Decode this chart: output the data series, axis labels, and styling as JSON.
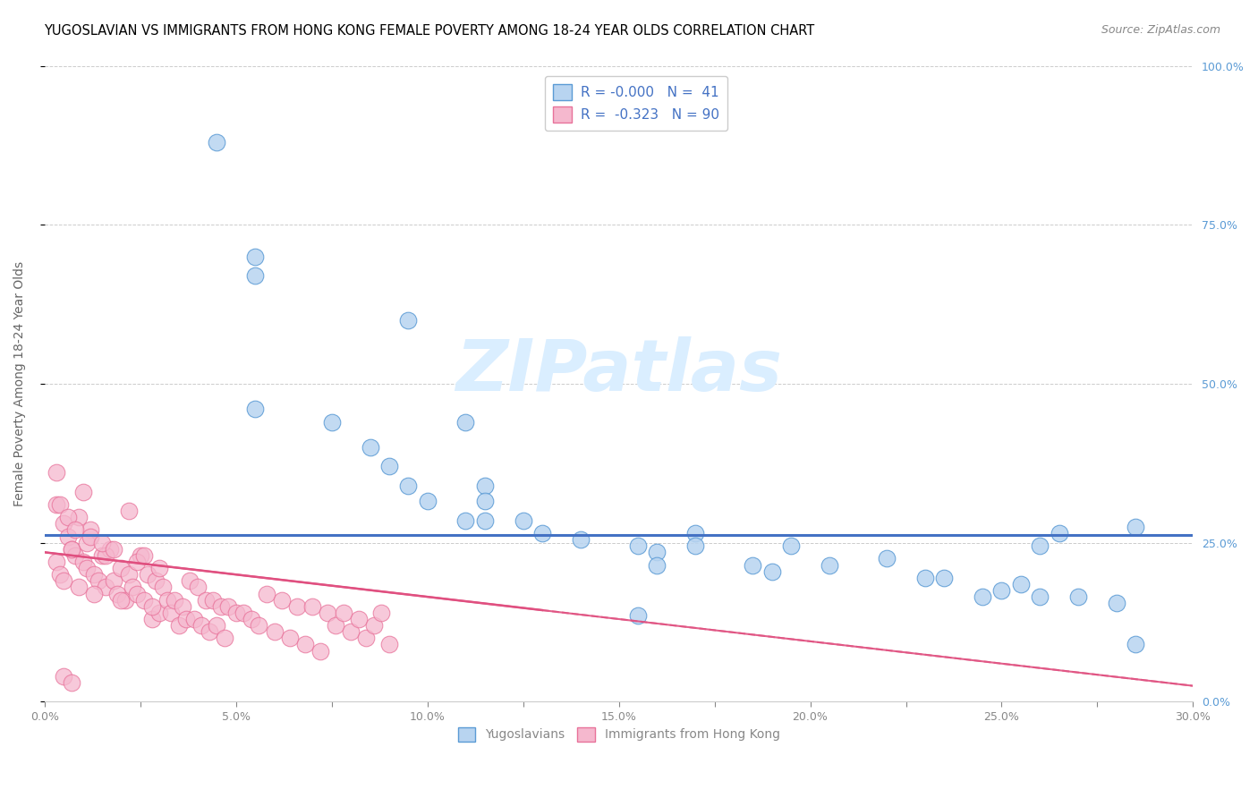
{
  "title": "YUGOSLAVIAN VS IMMIGRANTS FROM HONG KONG FEMALE POVERTY AMONG 18-24 YEAR OLDS CORRELATION CHART",
  "source": "Source: ZipAtlas.com",
  "ylabel": "Female Poverty Among 18-24 Year Olds",
  "xlim": [
    0.0,
    0.3
  ],
  "ylim": [
    0.0,
    1.0
  ],
  "xtick_labels": [
    "0.0%",
    "",
    "5.0%",
    "",
    "10.0%",
    "",
    "15.0%",
    "",
    "20.0%",
    "",
    "25.0%",
    "",
    "30.0%"
  ],
  "xtick_vals": [
    0.0,
    0.025,
    0.05,
    0.075,
    0.1,
    0.125,
    0.15,
    0.175,
    0.2,
    0.225,
    0.25,
    0.275,
    0.3
  ],
  "ytick_vals": [
    0.0,
    0.25,
    0.5,
    0.75,
    1.0
  ],
  "ytick_labels_right": [
    "0.0%",
    "25.0%",
    "50.0%",
    "75.0%",
    "100.0%"
  ],
  "blue_color": "#b8d4f0",
  "pink_color": "#f5b8ce",
  "blue_edge_color": "#5b9bd5",
  "pink_edge_color": "#e8729a",
  "blue_line_color": "#4472c4",
  "pink_line_color": "#e05080",
  "watermark_color": "#daeeff",
  "blue_hline_y": 0.262,
  "pink_trend_x0": 0.0,
  "pink_trend_y0": 0.235,
  "pink_trend_x1": 0.3,
  "pink_trend_y1": 0.025,
  "blue_scatter_x": [
    0.045,
    0.055,
    0.055,
    0.095,
    0.055,
    0.075,
    0.11,
    0.085,
    0.09,
    0.095,
    0.1,
    0.11,
    0.115,
    0.115,
    0.115,
    0.125,
    0.13,
    0.14,
    0.155,
    0.16,
    0.16,
    0.17,
    0.17,
    0.185,
    0.19,
    0.195,
    0.205,
    0.22,
    0.23,
    0.235,
    0.245,
    0.25,
    0.255,
    0.26,
    0.265,
    0.26,
    0.155,
    0.27,
    0.28,
    0.285,
    0.285
  ],
  "blue_scatter_y": [
    0.88,
    0.7,
    0.67,
    0.6,
    0.46,
    0.44,
    0.44,
    0.4,
    0.37,
    0.34,
    0.315,
    0.285,
    0.34,
    0.315,
    0.285,
    0.285,
    0.265,
    0.255,
    0.245,
    0.235,
    0.215,
    0.265,
    0.245,
    0.215,
    0.205,
    0.245,
    0.215,
    0.225,
    0.195,
    0.195,
    0.165,
    0.175,
    0.185,
    0.165,
    0.265,
    0.245,
    0.135,
    0.165,
    0.155,
    0.275,
    0.09
  ],
  "pink_scatter_x": [
    0.003,
    0.005,
    0.006,
    0.007,
    0.008,
    0.009,
    0.01,
    0.011,
    0.012,
    0.013,
    0.014,
    0.015,
    0.016,
    0.017,
    0.018,
    0.019,
    0.02,
    0.021,
    0.022,
    0.023,
    0.024,
    0.025,
    0.026,
    0.027,
    0.028,
    0.029,
    0.03,
    0.031,
    0.032,
    0.033,
    0.034,
    0.035,
    0.036,
    0.037,
    0.038,
    0.039,
    0.04,
    0.041,
    0.042,
    0.043,
    0.044,
    0.045,
    0.046,
    0.047,
    0.048,
    0.05,
    0.052,
    0.054,
    0.056,
    0.058,
    0.06,
    0.062,
    0.064,
    0.066,
    0.068,
    0.07,
    0.072,
    0.074,
    0.076,
    0.078,
    0.08,
    0.082,
    0.084,
    0.086,
    0.088,
    0.09,
    0.003,
    0.004,
    0.005,
    0.007,
    0.009,
    0.011,
    0.013,
    0.016,
    0.02,
    0.024,
    0.028,
    0.003,
    0.004,
    0.006,
    0.008,
    0.01,
    0.012,
    0.015,
    0.018,
    0.022,
    0.026,
    0.03,
    0.005,
    0.007
  ],
  "pink_scatter_y": [
    0.31,
    0.28,
    0.26,
    0.24,
    0.23,
    0.29,
    0.22,
    0.21,
    0.27,
    0.2,
    0.19,
    0.23,
    0.18,
    0.24,
    0.19,
    0.17,
    0.21,
    0.16,
    0.2,
    0.18,
    0.17,
    0.23,
    0.16,
    0.2,
    0.13,
    0.19,
    0.14,
    0.18,
    0.16,
    0.14,
    0.16,
    0.12,
    0.15,
    0.13,
    0.19,
    0.13,
    0.18,
    0.12,
    0.16,
    0.11,
    0.16,
    0.12,
    0.15,
    0.1,
    0.15,
    0.14,
    0.14,
    0.13,
    0.12,
    0.17,
    0.11,
    0.16,
    0.1,
    0.15,
    0.09,
    0.15,
    0.08,
    0.14,
    0.12,
    0.14,
    0.11,
    0.13,
    0.1,
    0.12,
    0.14,
    0.09,
    0.22,
    0.2,
    0.19,
    0.24,
    0.18,
    0.25,
    0.17,
    0.23,
    0.16,
    0.22,
    0.15,
    0.36,
    0.31,
    0.29,
    0.27,
    0.33,
    0.26,
    0.25,
    0.24,
    0.3,
    0.23,
    0.21,
    0.04,
    0.03
  ],
  "title_fontsize": 10.5,
  "ylabel_fontsize": 10,
  "tick_fontsize": 9,
  "legend_fontsize": 11,
  "source_fontsize": 9
}
